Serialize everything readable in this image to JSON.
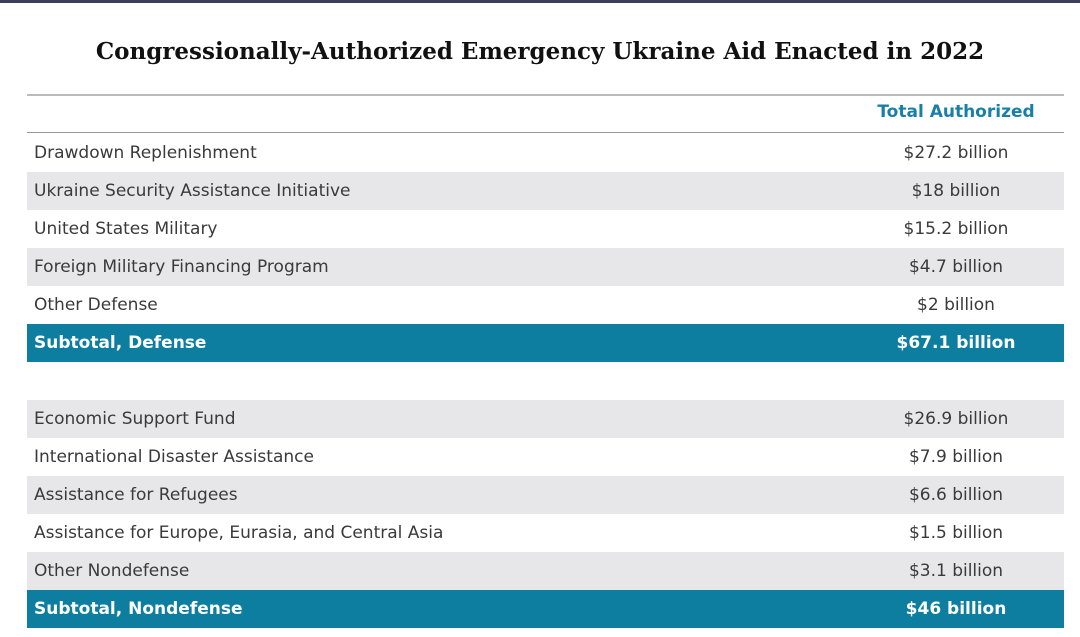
{
  "title": "Congressionally-Authorized Emergency Ukraine Aid Enacted in 2022",
  "column_header": "Total Authorized",
  "sections": [
    {
      "rows": [
        [
          "Drawdown Replenishment",
          "$27.2 billion"
        ],
        [
          "Ukraine Security Assistance Initiative",
          "$18 billion"
        ],
        [
          "United States Military",
          "$15.2 billion"
        ],
        [
          "Foreign Military Financing Program",
          "$4.7 billion"
        ],
        [
          "Other Defense",
          "$2 billion"
        ]
      ],
      "subtotal": [
        "Subtotal, Defense",
        "$67.1 billion"
      ]
    },
    {
      "rows": [
        [
          "Economic Support Fund",
          "$26.9 billion"
        ],
        [
          "International Disaster Assistance",
          "$7.9 billion"
        ],
        [
          "Assistance for Refugees",
          "$6.6 billion"
        ],
        [
          "Assistance for Europe, Eurasia, and Central Asia",
          "$1.5 billion"
        ],
        [
          "Other Nondefense",
          "$3.1 billion"
        ]
      ],
      "subtotal": [
        "Subtotal, Nondefense",
        "$46 billion"
      ]
    }
  ]
}
